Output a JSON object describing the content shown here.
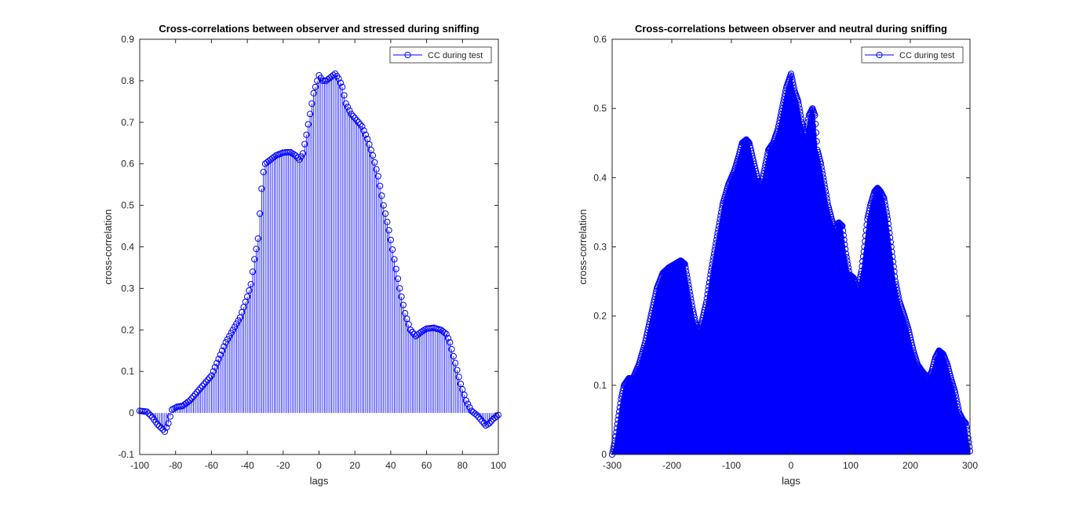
{
  "colors": {
    "series": "#0000ff",
    "axes": "#262626",
    "background": "#ffffff"
  },
  "chart_data": [
    {
      "type": "stem",
      "title": "Cross-correlations between observer and stressed during sniffing",
      "xlabel": "lags",
      "ylabel": "cross-correlation",
      "xlim": [
        -100,
        100
      ],
      "ylim": [
        -0.1,
        0.9
      ],
      "xticks": [
        -100,
        -80,
        -60,
        -40,
        -20,
        0,
        20,
        40,
        60,
        80,
        100
      ],
      "yticks": [
        -0.1,
        0,
        0.1,
        0.2,
        0.3,
        0.4,
        0.5,
        0.6,
        0.7,
        0.8,
        0.9
      ],
      "xtick_labels": [
        "-100",
        "-80",
        "-60",
        "-40",
        "-20",
        "0",
        "20",
        "40",
        "60",
        "80",
        "100"
      ],
      "ytick_labels": [
        "-0.1",
        "0",
        "0.1",
        "0.2",
        "0.3",
        "0.4",
        "0.5",
        "0.6",
        "0.7",
        "0.8",
        "0.9"
      ],
      "grid": false,
      "box": true,
      "legend": {
        "entries": [
          "CC during test"
        ],
        "location": "top-right"
      },
      "series": [
        {
          "name": "CC during test",
          "marker": "circle",
          "x_range": [
            -100,
            100
          ],
          "x_step": 1,
          "key_points": [
            [
              -100,
              0.005
            ],
            [
              -96,
              0.003
            ],
            [
              -93,
              -0.01
            ],
            [
              -90,
              -0.028
            ],
            [
              -87,
              -0.04
            ],
            [
              -86,
              -0.045
            ],
            [
              -84,
              -0.025
            ],
            [
              -82,
              0.008
            ],
            [
              -79,
              0.015
            ],
            [
              -76,
              0.017
            ],
            [
              -72,
              0.03
            ],
            [
              -68,
              0.05
            ],
            [
              -64,
              0.07
            ],
            [
              -60,
              0.09
            ],
            [
              -56,
              0.13
            ],
            [
              -52,
              0.17
            ],
            [
              -48,
              0.2
            ],
            [
              -44,
              0.23
            ],
            [
              -40,
              0.28
            ],
            [
              -38,
              0.31
            ],
            [
              -36,
              0.37
            ],
            [
              -34,
              0.42
            ],
            [
              -33,
              0.48
            ],
            [
              -32,
              0.54
            ],
            [
              -31,
              0.58
            ],
            [
              -30,
              0.6
            ],
            [
              -27,
              0.61
            ],
            [
              -24,
              0.62
            ],
            [
              -20,
              0.627
            ],
            [
              -16,
              0.628
            ],
            [
              -13,
              0.62
            ],
            [
              -11,
              0.61
            ],
            [
              -9,
              0.625
            ],
            [
              -7,
              0.67
            ],
            [
              -5,
              0.72
            ],
            [
              -3,
              0.77
            ],
            [
              -1,
              0.8
            ],
            [
              0,
              0.813
            ],
            [
              2,
              0.8
            ],
            [
              4,
              0.8
            ],
            [
              7,
              0.81
            ],
            [
              9,
              0.817
            ],
            [
              11,
              0.805
            ],
            [
              13,
              0.785
            ],
            [
              15,
              0.745
            ],
            [
              18,
              0.72
            ],
            [
              21,
              0.705
            ],
            [
              24,
              0.69
            ],
            [
              27,
              0.66
            ],
            [
              30,
              0.62
            ],
            [
              33,
              0.57
            ],
            [
              36,
              0.5
            ],
            [
              39,
              0.44
            ],
            [
              42,
              0.37
            ],
            [
              45,
              0.3
            ],
            [
              48,
              0.24
            ],
            [
              51,
              0.2
            ],
            [
              54,
              0.185
            ],
            [
              57,
              0.195
            ],
            [
              60,
              0.203
            ],
            [
              64,
              0.205
            ],
            [
              68,
              0.2
            ],
            [
              71,
              0.19
            ],
            [
              73,
              0.17
            ],
            [
              76,
              0.12
            ],
            [
              79,
              0.07
            ],
            [
              82,
              0.03
            ],
            [
              85,
              0.005
            ],
            [
              88,
              -0.005
            ],
            [
              91,
              -0.02
            ],
            [
              93,
              -0.03
            ],
            [
              95,
              -0.025
            ],
            [
              97,
              -0.015
            ],
            [
              100,
              -0.005
            ]
          ]
        }
      ]
    },
    {
      "type": "stem",
      "title": "Cross-correlations between observer and neutral during sniffing",
      "xlabel": "lags",
      "ylabel": "cross-correlation",
      "xlim": [
        -300,
        300
      ],
      "ylim": [
        0,
        0.6
      ],
      "xticks": [
        -300,
        -200,
        -100,
        0,
        100,
        200,
        300
      ],
      "yticks": [
        0,
        0.1,
        0.2,
        0.3,
        0.4,
        0.5,
        0.6
      ],
      "xtick_labels": [
        "-300",
        "-200",
        "-100",
        "0",
        "100",
        "200",
        "300"
      ],
      "ytick_labels": [
        "0",
        "0.1",
        "0.2",
        "0.3",
        "0.4",
        "0.5",
        "0.6"
      ],
      "grid": false,
      "box": true,
      "legend": {
        "entries": [
          "CC during test"
        ],
        "location": "top-right"
      },
      "series": [
        {
          "name": "CC during test",
          "marker": "circle",
          "x_range": [
            -300,
            300
          ],
          "x_step": 1,
          "key_points": [
            [
              -300,
              0.0
            ],
            [
              -295,
              0.02
            ],
            [
              -290,
              0.05
            ],
            [
              -285,
              0.08
            ],
            [
              -280,
              0.1
            ],
            [
              -272,
              0.11
            ],
            [
              -265,
              0.11
            ],
            [
              -255,
              0.13
            ],
            [
              -245,
              0.16
            ],
            [
              -235,
              0.2
            ],
            [
              -225,
              0.24
            ],
            [
              -215,
              0.262
            ],
            [
              -205,
              0.27
            ],
            [
              -195,
              0.275
            ],
            [
              -185,
              0.28
            ],
            [
              -178,
              0.275
            ],
            [
              -172,
              0.245
            ],
            [
              -165,
              0.21
            ],
            [
              -160,
              0.19
            ],
            [
              -155,
              0.18
            ],
            [
              -150,
              0.19
            ],
            [
              -142,
              0.22
            ],
            [
              -135,
              0.26
            ],
            [
              -125,
              0.31
            ],
            [
              -115,
              0.36
            ],
            [
              -105,
              0.39
            ],
            [
              -95,
              0.41
            ],
            [
              -88,
              0.43
            ],
            [
              -82,
              0.45
            ],
            [
              -75,
              0.455
            ],
            [
              -70,
              0.45
            ],
            [
              -62,
              0.42
            ],
            [
              -55,
              0.395
            ],
            [
              -50,
              0.39
            ],
            [
              -45,
              0.41
            ],
            [
              -38,
              0.44
            ],
            [
              -30,
              0.45
            ],
            [
              -22,
              0.47
            ],
            [
              -15,
              0.5
            ],
            [
              -8,
              0.53
            ],
            [
              0,
              0.55
            ],
            [
              6,
              0.525
            ],
            [
              12,
              0.51
            ],
            [
              18,
              0.48
            ],
            [
              24,
              0.46
            ],
            [
              30,
              0.49
            ],
            [
              36,
              0.5
            ],
            [
              40,
              0.49
            ],
            [
              44,
              0.44
            ],
            [
              50,
              0.42
            ],
            [
              56,
              0.39
            ],
            [
              62,
              0.36
            ],
            [
              68,
              0.34
            ],
            [
              74,
              0.325
            ],
            [
              80,
              0.335
            ],
            [
              86,
              0.33
            ],
            [
              92,
              0.29
            ],
            [
              98,
              0.26
            ],
            [
              105,
              0.255
            ],
            [
              112,
              0.24
            ],
            [
              118,
              0.265
            ],
            [
              123,
              0.3
            ],
            [
              128,
              0.34
            ],
            [
              133,
              0.36
            ],
            [
              140,
              0.38
            ],
            [
              145,
              0.385
            ],
            [
              150,
              0.38
            ],
            [
              156,
              0.37
            ],
            [
              162,
              0.34
            ],
            [
              168,
              0.3
            ],
            [
              175,
              0.25
            ],
            [
              182,
              0.22
            ],
            [
              190,
              0.2
            ],
            [
              197,
              0.18
            ],
            [
              205,
              0.15
            ],
            [
              212,
              0.13
            ],
            [
              220,
              0.12
            ],
            [
              230,
              0.11
            ],
            [
              236,
              0.12
            ],
            [
              242,
              0.14
            ],
            [
              248,
              0.15
            ],
            [
              255,
              0.145
            ],
            [
              262,
              0.13
            ],
            [
              268,
              0.11
            ],
            [
              275,
              0.09
            ],
            [
              282,
              0.06
            ],
            [
              288,
              0.05
            ],
            [
              293,
              0.045
            ],
            [
              296,
              0.03
            ],
            [
              300,
              0.005
            ]
          ]
        }
      ]
    }
  ]
}
